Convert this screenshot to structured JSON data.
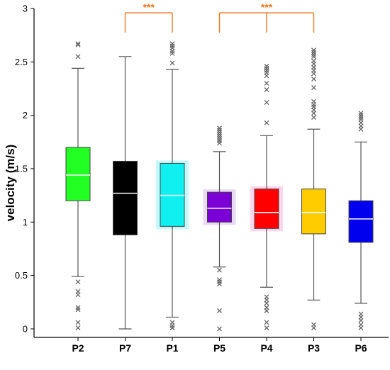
{
  "chart_data": {
    "type": "box",
    "ylabel": "velocity (m/s)",
    "ylim": [
      0,
      3
    ],
    "yticks": [
      0,
      0.5,
      1,
      1.5,
      2,
      2.5,
      3
    ],
    "ytick_labels": [
      "0",
      "0.5",
      "1",
      "1.5",
      "2",
      "2.5",
      "3"
    ],
    "categories": [
      "P2",
      "P7",
      "P1",
      "P5",
      "P4",
      "P3",
      "P6"
    ],
    "boxes": [
      {
        "label": "P2",
        "q1": 1.2,
        "median": 1.44,
        "q3": 1.7,
        "whisker_low": 0.49,
        "whisker_high": 2.44,
        "outliers": [
          2.66,
          2.67,
          2.55,
          0.44,
          0.35,
          0.32,
          0.2,
          0.18,
          0.06,
          0.01
        ],
        "color": "#22ff22",
        "median_color": "#ffffff"
      },
      {
        "label": "P7",
        "q1": 0.88,
        "median": 1.27,
        "q3": 1.57,
        "whisker_low": 0.0,
        "whisker_high": 2.55,
        "outliers": [],
        "color": "#000000",
        "median_color": "#ffffff"
      },
      {
        "label": "P1",
        "q1": 0.96,
        "median": 1.25,
        "q3": 1.55,
        "whisker_low": 0.11,
        "whisker_high": 2.43,
        "outliers": [
          2.67,
          2.65,
          2.63,
          2.6,
          2.58,
          2.49,
          0.06,
          0.03,
          0.01
        ],
        "color": "#11f0f0",
        "median_color": "#ffffff",
        "halo": "#c4f8fb"
      },
      {
        "label": "P5",
        "q1": 1.0,
        "median": 1.13,
        "q3": 1.28,
        "whisker_low": 0.58,
        "whisker_high": 1.66,
        "outliers": [
          1.88,
          1.86,
          1.84,
          1.82,
          1.8,
          1.78,
          1.76,
          1.74,
          0.55,
          0.46,
          0.44,
          0.42,
          0.17,
          0.0
        ],
        "color": "#7a00d6",
        "median_color": "#ffffff",
        "halo": "#ead9f5"
      },
      {
        "label": "P4",
        "q1": 0.94,
        "median": 1.09,
        "q3": 1.31,
        "whisker_low": 0.39,
        "whisker_high": 1.81,
        "outliers": [
          2.46,
          2.44,
          2.42,
          2.4,
          2.37,
          2.3,
          2.24,
          2.12,
          1.93,
          0.3,
          0.27,
          0.24,
          0.2,
          0.17,
          0.06,
          0.01
        ],
        "color": "#ff0000",
        "median_color": "#ffffff",
        "halo": "#ffd6ec"
      },
      {
        "label": "P3",
        "q1": 0.89,
        "median": 1.09,
        "q3": 1.31,
        "whisker_low": 0.27,
        "whisker_high": 1.87,
        "outliers": [
          2.61,
          2.59,
          2.57,
          2.55,
          2.51,
          2.48,
          2.45,
          2.42,
          2.39,
          2.34,
          2.26,
          2.13,
          2.1,
          2.08,
          2.05,
          2.02,
          1.98,
          0.04,
          0.01
        ],
        "color": "#ffcc00",
        "median_color": "#ffffff"
      },
      {
        "label": "P6",
        "q1": 0.81,
        "median": 1.03,
        "q3": 1.2,
        "whisker_low": 0.24,
        "whisker_high": 1.75,
        "outliers": [
          2.02,
          2.0,
          1.98,
          1.96,
          1.93,
          1.9,
          1.87,
          0.14,
          0.11,
          0.08,
          0.04,
          0.01
        ],
        "color": "#0000ee",
        "median_color": "#ffffff"
      }
    ],
    "significance": [
      {
        "from": "P7",
        "to": "P1",
        "label": "***",
        "y": 2.96
      },
      {
        "from": "P5",
        "to": "P3",
        "via": "P4",
        "label": "***",
        "y": 2.96
      }
    ],
    "colors": {
      "axis": "#000000",
      "whisker": "#555555",
      "outlier": "#666666",
      "significance": "#ee7722"
    }
  }
}
